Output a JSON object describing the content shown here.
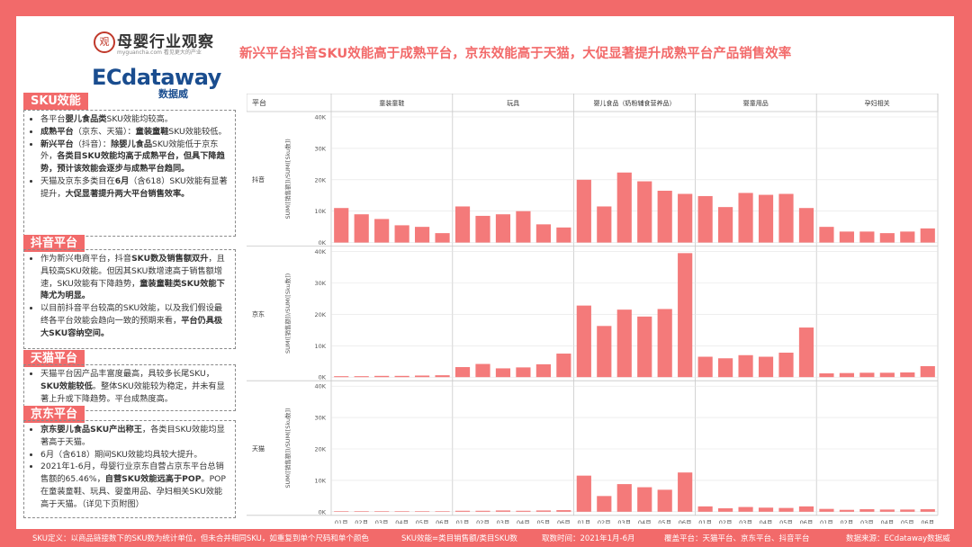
{
  "logo": {
    "brand1": "母婴行业观察",
    "brand1_badge": "观",
    "brand1_sub": "myguancha.com 看见更大的产业",
    "brand2": "ECdataway",
    "brand2_cn": "数据威"
  },
  "headline": "新兴平台抖音SKU效能高于成熟平台，京东效能高于天猫，大促显著提升成熟平台产品销售效率",
  "sections": [
    {
      "title": "SKU效能",
      "bullets": [
        [
          {
            "t": "各平台"
          },
          {
            "t": "婴儿食品类",
            "b": true
          },
          {
            "t": "SKU效能均较高。"
          }
        ],
        [
          {
            "t": "成熟平台",
            "b": true
          },
          {
            "t": "（京东、天猫）："
          },
          {
            "t": "童装童鞋",
            "b": true
          },
          {
            "t": "SKU效能较低。"
          }
        ],
        [
          {
            "t": "新兴平台",
            "b": true
          },
          {
            "t": "（抖音）："
          },
          {
            "t": "除婴儿食品",
            "b": true
          },
          {
            "t": "SKU效能低于京东外，"
          },
          {
            "t": "各类目SKU效能均高于成熟平台，但具下降趋势，预计该效能会逐步与成熟平台趋同。",
            "b": true
          }
        ],
        [
          {
            "t": "天猫及京东多类目在"
          },
          {
            "t": "6月",
            "b": true
          },
          {
            "t": "（含618）SKU效能有显著提升，"
          },
          {
            "t": "大促显著提升两大平台销售效率。",
            "b": true
          }
        ]
      ]
    },
    {
      "title": "抖音平台",
      "bullets": [
        [
          {
            "t": "作为新兴电商平台，抖音"
          },
          {
            "t": "SKU数及销售额双升",
            "b": true
          },
          {
            "t": "，且具较高SKU效能。但因其SKU数增速高于销售额增速，SKU效能有下降趋势，"
          },
          {
            "t": "童装童鞋类SKU效能下降尤为明显。",
            "b": true
          }
        ],
        [
          {
            "t": "以目前抖音平台较高的SKU效能，以及我们假设最终各平台效能会趋向一致的预期来看，"
          },
          {
            "t": "平台仍具极大SKU容纳空间。",
            "b": true
          }
        ]
      ]
    },
    {
      "title": "天猫平台",
      "bullets": [
        [
          {
            "t": "天猫平台因产品丰富度最高，具较多长尾SKU，"
          },
          {
            "t": "SKU效能较低",
            "b": true
          },
          {
            "t": "。整体SKU效能较为稳定，并未有显著上升或下降趋势。平台成熟度高。"
          }
        ]
      ]
    },
    {
      "title": "京东平台",
      "bullets": [
        [
          {
            "t": "京东婴儿食品SKU产出称王",
            "b": true
          },
          {
            "t": "，各类目SKU效能均显著高于天猫。"
          }
        ],
        [
          {
            "t": "6月（含618）期间SKU效能均具较大提升。"
          }
        ],
        [
          {
            "t": "2021年1-6月，母婴行业京东自营占京东平台总销售额的65.46%，"
          },
          {
            "t": "自营SKU效能远高于POP",
            "b": true
          },
          {
            "t": "。POP在童装童鞋、玩具、婴童用品、孕妇相关SKU效能高于天猫。（详见下页附图）"
          }
        ]
      ]
    }
  ],
  "footer": {
    "items": [
      "SKU定义：以商品链接数下的SKU数为统计单位，但未合并相同SKU，如重复到单个尺码和单个颜色",
      "SKU效能=类目销售额/类目SKU数",
      "取数时间：2021年1月-6月",
      "覆盖平台：天猫平台、京东平台、抖音平台",
      "数据来源：ECdataway数据威"
    ]
  },
  "chart_data": {
    "type": "bar",
    "title": "",
    "row_header": "平台",
    "ylabel": "SUM([销售额])/SUM([Sku数])",
    "ylim": [
      0,
      40000
    ],
    "yticks": [
      "0K",
      "10K",
      "20K",
      "30K",
      "40K"
    ],
    "months": [
      "01月",
      "02月",
      "03月",
      "04月",
      "05月",
      "06月"
    ],
    "categories": [
      "童装童鞋",
      "玩具",
      "婴儿食品（奶粉辅食营养品）",
      "婴童用品",
      "孕妇相关"
    ],
    "platforms": [
      "抖音",
      "京东",
      "天猫"
    ],
    "colors": {
      "bar": "#f47a7a",
      "grid": "#e3e3e3",
      "frame": "#c8c8c8",
      "text": "#555555"
    },
    "values": {
      "抖音": [
        [
          11000,
          9000,
          7500,
          5500,
          5000,
          3000
        ],
        [
          11500,
          8500,
          9000,
          10000,
          5800,
          4800
        ],
        [
          20000,
          11500,
          22300,
          19500,
          16500,
          15500
        ],
        [
          14800,
          11300,
          15800,
          15200,
          15500,
          11000
        ],
        [
          5000,
          3500,
          3500,
          3000,
          3500,
          4500
        ]
      ],
      "京东": [
        [
          300,
          300,
          400,
          400,
          500,
          600
        ],
        [
          3200,
          4200,
          2800,
          3100,
          4100,
          7500
        ],
        [
          22800,
          16300,
          21500,
          19300,
          21700,
          39500
        ],
        [
          6500,
          6000,
          7000,
          6500,
          7800,
          15800
        ],
        [
          1200,
          1300,
          1400,
          1400,
          1500,
          3500
        ]
      ],
      "天猫": [
        [
          100,
          100,
          100,
          100,
          100,
          100
        ],
        [
          300,
          300,
          400,
          300,
          400,
          500
        ],
        [
          11500,
          5000,
          8800,
          7800,
          7000,
          12500
        ],
        [
          1700,
          1100,
          1500,
          1300,
          1200,
          1700
        ],
        [
          900,
          600,
          800,
          700,
          700,
          800
        ]
      ]
    }
  }
}
